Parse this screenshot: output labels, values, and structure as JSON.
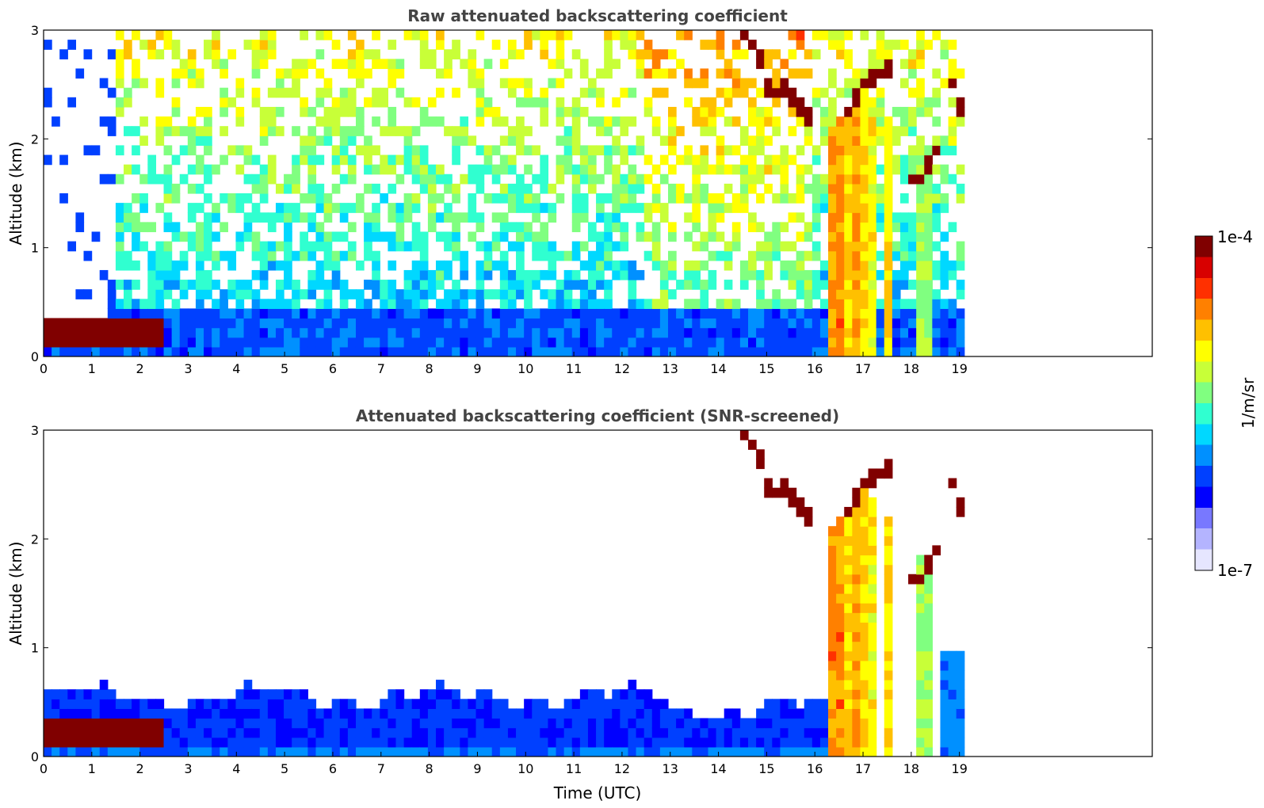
{
  "chart_data": [
    {
      "type": "heatmap",
      "title": "Raw attenuated backscattering coefficient",
      "xlabel": "",
      "ylabel": "Altitude (km)",
      "xlim": [
        0,
        23
      ],
      "ylim": [
        0,
        3
      ],
      "x_ticks": [
        "0",
        "1",
        "2",
        "3",
        "4",
        "5",
        "6",
        "7",
        "8",
        "9",
        "10",
        "11",
        "12",
        "13",
        "14",
        "15",
        "16",
        "17",
        "18",
        "19"
      ],
      "y_ticks": [
        "0",
        "1",
        "2",
        "3"
      ],
      "data_extent_hours": [
        0,
        19.1
      ],
      "layers": [
        {
          "feature": "noise background",
          "x_range": [
            0,
            19.1
          ],
          "y_range": [
            0.5,
            3.0
          ],
          "level": 0.35
        },
        {
          "feature": "boundary layer",
          "x_range": [
            0,
            19.1
          ],
          "y_range": [
            0,
            0.5
          ],
          "level": 0.28
        },
        {
          "feature": "fog layer",
          "x_range": [
            0,
            2.55
          ],
          "y_range": [
            0.15,
            0.3
          ],
          "level": 0.98
        },
        {
          "feature": "precipitation columns",
          "x_range": [
            16.3,
            18.6
          ],
          "y_range": [
            0,
            2.5
          ],
          "level": 0.72
        }
      ]
    },
    {
      "type": "heatmap",
      "title": "Attenuated backscattering coefficient (SNR-screened)",
      "xlabel": "Time (UTC)",
      "ylabel": "Altitude (km)",
      "xlim": [
        0,
        23
      ],
      "ylim": [
        0,
        3
      ],
      "x_ticks": [
        "0",
        "1",
        "2",
        "3",
        "4",
        "5",
        "6",
        "7",
        "8",
        "9",
        "10",
        "11",
        "12",
        "13",
        "14",
        "15",
        "16",
        "17",
        "18",
        "19"
      ],
      "y_ticks": [
        "0",
        "1",
        "2",
        "3"
      ],
      "data_extent_hours": [
        0,
        19.1
      ],
      "layers": [
        {
          "feature": "boundary layer",
          "x_range": [
            0,
            19.1
          ],
          "y_range": [
            0,
            0.7
          ],
          "level": 0.3
        },
        {
          "feature": "fog layer",
          "x_range": [
            0,
            2.55
          ],
          "y_range": [
            0.15,
            0.3
          ],
          "level": 1.0
        },
        {
          "feature": "precipitation columns",
          "x_range": [
            16.3,
            18.6
          ],
          "y_range": [
            0,
            2.5
          ],
          "level": 0.72
        }
      ]
    }
  ],
  "colorbar": {
    "label": "1/m/sr",
    "max_label": "1e-4",
    "min_label": "1e-7",
    "colors": [
      "#e6e6ff",
      "#b4b4ff",
      "#7878ff",
      "#0000ff",
      "#0040ff",
      "#0090ff",
      "#00d8ff",
      "#30ffd0",
      "#80ff80",
      "#c8ff38",
      "#ffff00",
      "#ffc000",
      "#ff8000",
      "#ff3000",
      "#d80000",
      "#800000"
    ]
  }
}
